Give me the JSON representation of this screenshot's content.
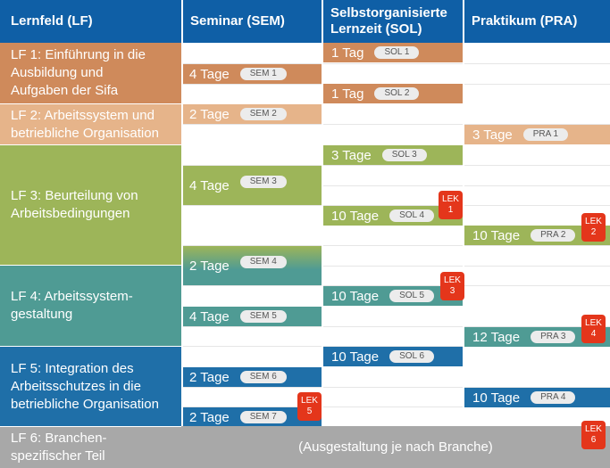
{
  "header": {
    "col_lf": "Lernfeld (LF)",
    "col_sem": "Seminar (SEM)",
    "col_sol_line1": "Selbstorganisierte",
    "col_sol_line2": "Lernzeit (SOL)",
    "col_pra": "Praktikum (PRA)"
  },
  "lernfelder": [
    {
      "lines": [
        "LF 1: Einführung in die",
        "Ausbildung und",
        "Aufgaben der Sifa"
      ],
      "color": "#cf8a5b"
    },
    {
      "lines": [
        "LF 2: Arbeitssystem und",
        "betriebliche Organisation"
      ],
      "color": "#e6b48a"
    },
    {
      "lines": [
        "LF 3: Beurteilung von",
        "Arbeitsbedingungen"
      ],
      "color": "#9db559"
    },
    {
      "lines": [
        "LF 4: Arbeitssystem-",
        "gestaltung"
      ],
      "color": "#4f9b94"
    },
    {
      "lines": [
        "LF 5: Integration des",
        "Arbeitsschutzes in die",
        "betriebliche Organisation"
      ],
      "color": "#1f6fa8"
    },
    {
      "lines": [
        "LF 6: Branchen-",
        "spezifischer Teil"
      ],
      "color": "#a8a8a8"
    }
  ],
  "segments": [
    {
      "label": "1 Tag",
      "tag": "SOL 1",
      "color": "#cf8a5b"
    },
    {
      "label": "4 Tage",
      "tag": "SEM 1",
      "color": "#cf8a5b"
    },
    {
      "label": "1 Tag",
      "tag": "SOL 2",
      "color": "#cf8a5b"
    },
    {
      "label": "2 Tage",
      "tag": "SEM 2",
      "color": "#e6b48a"
    },
    {
      "label": "3 Tage",
      "tag": "PRA 1",
      "color": "#e6b48a"
    },
    {
      "label": "3 Tage",
      "tag": "SOL 3",
      "color": "#9db559"
    },
    {
      "label": "4 Tage",
      "tag": "SEM 3",
      "color": "#9db559"
    },
    {
      "label": "10 Tage",
      "tag": "SOL 4",
      "color": "#9db559"
    },
    {
      "label": "10 Tage",
      "tag": "PRA 2",
      "color": "#9db559"
    },
    {
      "label": "2 Tage",
      "tag": "SEM 4",
      "color": "#4f9b94"
    },
    {
      "label": "10 Tage",
      "tag": "SOL 5",
      "color": "#4f9b94"
    },
    {
      "label": "4 Tage",
      "tag": "SEM 5",
      "color": "#4f9b94"
    },
    {
      "label": "12 Tage",
      "tag": "PRA 3",
      "color": "#4f9b94"
    },
    {
      "label": "10 Tage",
      "tag": "SOL 6",
      "color": "#1f6fa8"
    },
    {
      "label": "2 Tage",
      "tag": "SEM 6",
      "color": "#1f6fa8"
    },
    {
      "label": "10 Tage",
      "tag": "PRA 4",
      "color": "#1f6fa8"
    },
    {
      "label": "2 Tage",
      "tag": "SEM 7",
      "color": "#1f6fa8"
    }
  ],
  "lek": [
    {
      "word": "LEK",
      "num": "1"
    },
    {
      "word": "LEK",
      "num": "2"
    },
    {
      "word": "LEK",
      "num": "3"
    },
    {
      "word": "LEK",
      "num": "4"
    },
    {
      "word": "LEK",
      "num": "5"
    },
    {
      "word": "LEK",
      "num": "6"
    }
  ],
  "branche_text": "(Ausgestaltung je nach Branche)",
  "colors": {
    "header": "#0f5fa6",
    "lek": "#e4361b"
  }
}
